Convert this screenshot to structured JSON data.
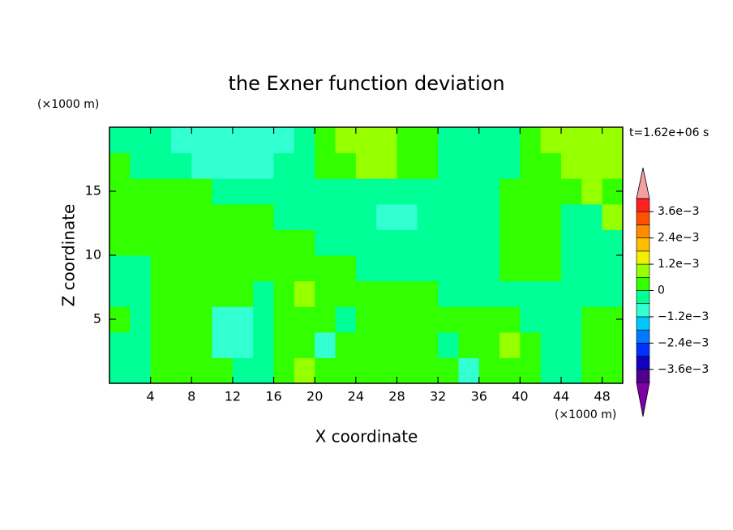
{
  "chart_data": {
    "type": "contour",
    "title": "the Exner function deviation",
    "subtitle": "t=1.62e+06 s",
    "x_label": "X coordinate",
    "y_label": "Z coordinate",
    "x_unit": "(×1000 m)",
    "y_unit": "(×1000 m)",
    "xlim": [
      0,
      50
    ],
    "ylim": [
      0,
      20
    ],
    "xticks": [
      4,
      8,
      12,
      16,
      20,
      24,
      28,
      32,
      36,
      40,
      44,
      48
    ],
    "yticks": [
      5,
      10,
      15
    ],
    "x": [
      1,
      3,
      5,
      7,
      9,
      11,
      13,
      15,
      17,
      19,
      21,
      23,
      25,
      27,
      29,
      31,
      33,
      35,
      37,
      39,
      41,
      43,
      45,
      47,
      49
    ],
    "y": [
      1,
      3,
      5,
      7,
      9,
      11,
      13,
      15,
      17,
      19
    ],
    "z": [
      [
        -0.0003,
        -0.0003,
        0.0003,
        0.0003,
        0.0003,
        0.0003,
        -0.0003,
        -0.0003,
        0.0003,
        0.0009,
        0.0003,
        0.0003,
        0.0003,
        0.0003,
        0.0003,
        0.0003,
        0.0003,
        -0.0009,
        0.0003,
        0.0003,
        0.0003,
        -0.0003,
        -0.0003,
        0.0003,
        0.0003
      ],
      [
        -0.0003,
        -0.0003,
        0.0003,
        0.0003,
        0.0003,
        -0.0009,
        -0.0009,
        -0.0003,
        0.0003,
        0.0003,
        -0.0009,
        0.0003,
        0.0003,
        0.0003,
        0.0003,
        0.0003,
        -0.0003,
        0.0003,
        0.0003,
        0.0009,
        0.0003,
        -0.0003,
        -0.0003,
        0.0003,
        0.0003
      ],
      [
        0.0003,
        -0.0003,
        0.0003,
        0.0003,
        0.0003,
        -0.0009,
        -0.0009,
        -0.0003,
        0.0003,
        0.0003,
        0.0003,
        -0.0003,
        0.0003,
        0.0003,
        0.0003,
        0.0003,
        0.0003,
        0.0003,
        0.0003,
        0.0003,
        -0.0003,
        -0.0003,
        -0.0003,
        0.0003,
        0.0003
      ],
      [
        -0.0003,
        -0.0003,
        0.0003,
        0.0003,
        0.0003,
        0.0003,
        0.0003,
        -0.0003,
        0.0003,
        0.0009,
        0.0003,
        0.0003,
        0.0003,
        0.0003,
        0.0003,
        0.0003,
        -0.0003,
        -0.0003,
        -0.0003,
        -0.0003,
        -0.0003,
        -0.0003,
        -0.0003,
        -0.0003,
        -0.0003
      ],
      [
        -0.0003,
        -0.0003,
        0.0003,
        0.0003,
        0.0003,
        0.0003,
        0.0003,
        0.0003,
        0.0003,
        0.0003,
        0.0003,
        0.0003,
        -0.0003,
        -0.0003,
        -0.0003,
        -0.0003,
        -0.0003,
        -0.0003,
        -0.0003,
        0.0003,
        0.0003,
        0.0003,
        -0.0003,
        -0.0003,
        -0.0003
      ],
      [
        0.0003,
        0.0003,
        0.0003,
        0.0003,
        0.0003,
        0.0003,
        0.0003,
        0.0003,
        0.0003,
        0.0003,
        -0.0003,
        -0.0003,
        -0.0003,
        -0.0003,
        -0.0003,
        -0.0003,
        -0.0003,
        -0.0003,
        -0.0003,
        0.0003,
        0.0003,
        0.0003,
        -0.0003,
        -0.0003,
        -0.0003
      ],
      [
        0.0003,
        0.0003,
        0.0003,
        0.0003,
        0.0003,
        0.0003,
        0.0003,
        0.0003,
        -0.0003,
        -0.0003,
        -0.0003,
        -0.0003,
        -0.0003,
        -0.0009,
        -0.0009,
        -0.0003,
        -0.0003,
        -0.0003,
        -0.0003,
        0.0003,
        0.0003,
        0.0003,
        -0.0003,
        -0.0003,
        0.0009
      ],
      [
        0.0003,
        0.0003,
        0.0003,
        0.0003,
        0.0003,
        -0.0003,
        -0.0003,
        -0.0003,
        -0.0003,
        -0.0003,
        -0.0003,
        -0.0003,
        -0.0003,
        -0.0003,
        -0.0003,
        -0.0003,
        -0.0003,
        -0.0003,
        -0.0003,
        0.0003,
        0.0003,
        0.0003,
        0.0003,
        0.0009,
        0.0003
      ],
      [
        0.0003,
        -0.0003,
        -0.0003,
        -0.0003,
        -0.0009,
        -0.0009,
        -0.0009,
        -0.0009,
        -0.0003,
        -0.0003,
        0.0003,
        0.0003,
        0.0009,
        0.0009,
        0.0003,
        0.0003,
        -0.0003,
        -0.0003,
        -0.0003,
        -0.0003,
        0.0003,
        0.0003,
        0.0009,
        0.0009,
        0.0009
      ],
      [
        -0.0003,
        -0.0003,
        -0.0003,
        -0.0009,
        -0.0009,
        -0.0009,
        -0.0009,
        -0.0009,
        -0.0009,
        -0.0003,
        0.0003,
        0.0009,
        0.0009,
        0.0009,
        0.0003,
        0.0003,
        -0.0003,
        -0.0003,
        -0.0003,
        -0.0003,
        0.0003,
        0.0009,
        0.0009,
        0.0009,
        0.0009
      ]
    ],
    "levels": [
      -0.0042,
      -0.0036,
      -0.003,
      -0.0024,
      -0.0018,
      -0.0012,
      -0.0006,
      0,
      0.0006,
      0.0012,
      0.0018,
      0.0024,
      0.003,
      0.0036,
      0.0042
    ],
    "colors": [
      "#500090",
      "#1000c0",
      "#0032ff",
      "#0078ff",
      "#00c8ff",
      "#32ffd2",
      "#00ff96",
      "#32ff00",
      "#96ff00",
      "#f0f000",
      "#ffbe00",
      "#ff8c00",
      "#ff5000",
      "#ff2020"
    ],
    "under_color": "#8000a8",
    "over_color": "#f4a0a0",
    "colorbar_ticks": [
      {
        "value": 0.0036,
        "label": "3.6e−3"
      },
      {
        "value": 0.0024,
        "label": "2.4e−3"
      },
      {
        "value": 0.0012,
        "label": "1.2e−3"
      },
      0,
      {
        "value": -0.0012,
        "label": "−1.2e−3"
      },
      {
        "value": -0.0024,
        "label": "−2.4e−3"
      },
      {
        "value": -0.0036,
        "label": "−3.6e−3"
      }
    ]
  }
}
